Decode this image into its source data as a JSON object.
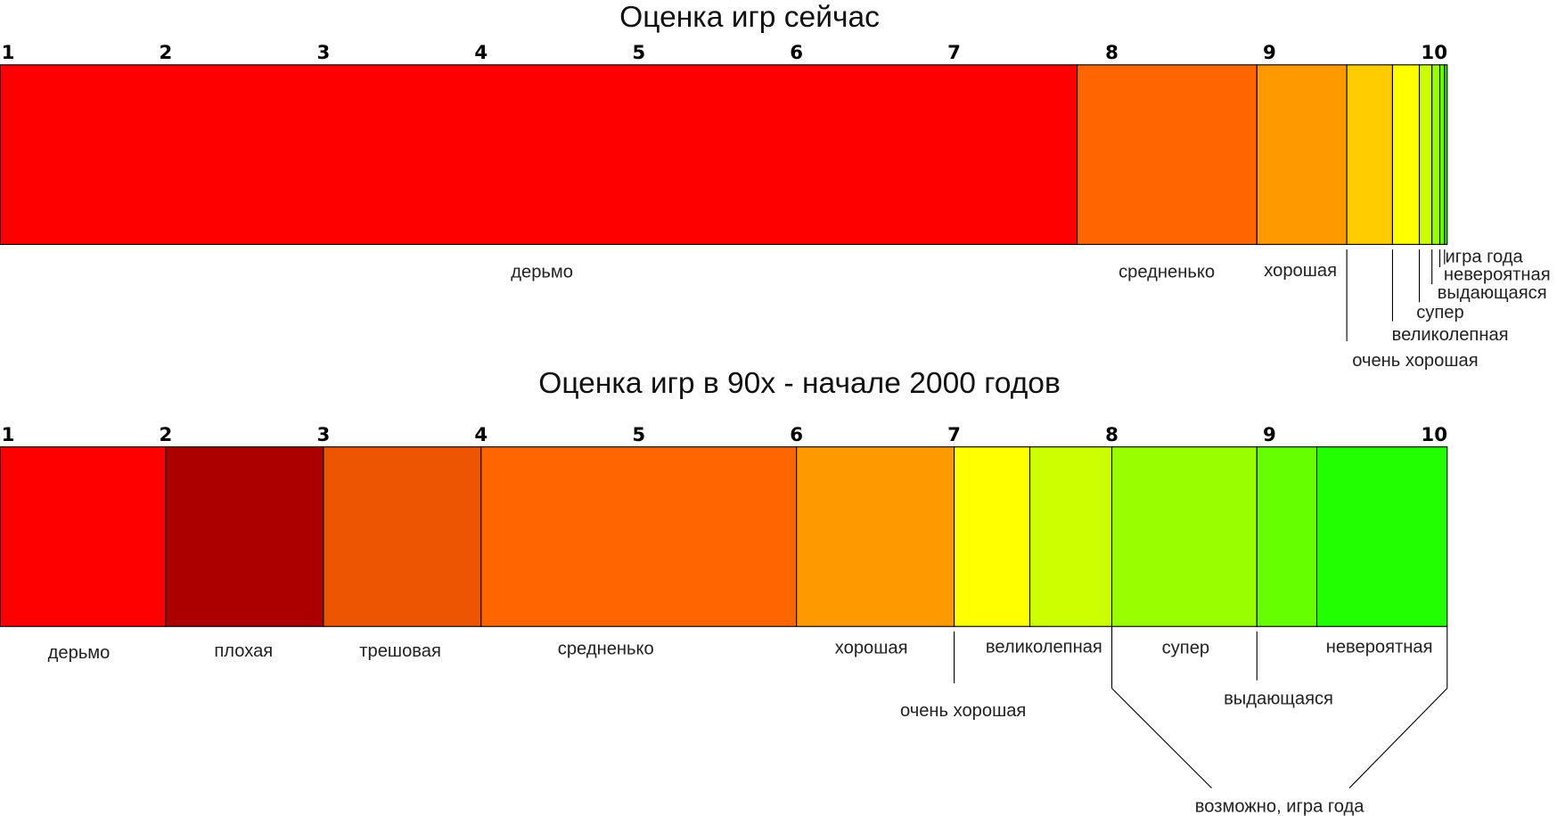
{
  "chart_data": [
    {
      "type": "bar",
      "orientation": "horizontal-stacked-scale",
      "title": "Оценка игр сейчас",
      "tick_labels": [
        "1",
        "2",
        "3",
        "4",
        "5",
        "6",
        "7",
        "8",
        "9",
        "10"
      ],
      "xlim": [
        0.95,
        10.13
      ],
      "segments": [
        {
          "label": "дерьмо",
          "start": 0.95,
          "end": 7.78,
          "color": "#ff0000"
        },
        {
          "label": "средненько",
          "start": 7.78,
          "end": 8.92,
          "color": "#ff6600"
        },
        {
          "label": "хорошая",
          "start": 8.92,
          "end": 9.49,
          "color": "#ff9900"
        },
        {
          "label": "очень хорошая",
          "start": 9.49,
          "end": 9.78,
          "color": "#ffcc00"
        },
        {
          "label": "великолепная",
          "start": 9.78,
          "end": 9.95,
          "color": "#ffff00"
        },
        {
          "label": "супер",
          "start": 9.95,
          "end": 10.03,
          "color": "#ccff00"
        },
        {
          "label": "выдающаяся",
          "start": 10.03,
          "end": 10.08,
          "color": "#99ff00"
        },
        {
          "label": "невероятная",
          "start": 10.08,
          "end": 10.11,
          "color": "#66ff00"
        },
        {
          "label": "игра года",
          "start": 10.11,
          "end": 10.13,
          "color": "#33ff00"
        }
      ]
    },
    {
      "type": "bar",
      "orientation": "horizontal-stacked-scale",
      "title": "Оценка игр в 90х - начале 2000 годов",
      "tick_labels": [
        "1",
        "2",
        "3",
        "4",
        "5",
        "6",
        "7",
        "8",
        "9",
        "10"
      ],
      "xlim": [
        0.95,
        10.13
      ],
      "segments": [
        {
          "label": "дерьмо",
          "start": 0.95,
          "end": 2.0,
          "color": "#ff0000"
        },
        {
          "label": "плохая",
          "start": 2.0,
          "end": 3.0,
          "color": "#aa0000"
        },
        {
          "label": "трешовая",
          "start": 3.0,
          "end": 4.0,
          "color": "#ee5500"
        },
        {
          "label": "средненько",
          "start": 4.0,
          "end": 6.0,
          "color": "#ff6600"
        },
        {
          "label": "хорошая",
          "start": 6.0,
          "end": 7.0,
          "color": "#ff9900"
        },
        {
          "label": "очень хорошая",
          "start": 7.0,
          "end": 7.48,
          "color": "#ffff00"
        },
        {
          "label": "великолепная",
          "start": 7.48,
          "end": 8.0,
          "color": "#ccff00"
        },
        {
          "label": "супер",
          "start": 8.0,
          "end": 8.92,
          "color": "#99ff00"
        },
        {
          "label": "выдающаяся",
          "start": 8.92,
          "end": 9.3,
          "color": "#66ff00"
        },
        {
          "label": "невероятная",
          "start": 9.3,
          "end": 10.13,
          "color": "#22ff00"
        }
      ],
      "bracket_label": "возможно, игра года"
    }
  ]
}
